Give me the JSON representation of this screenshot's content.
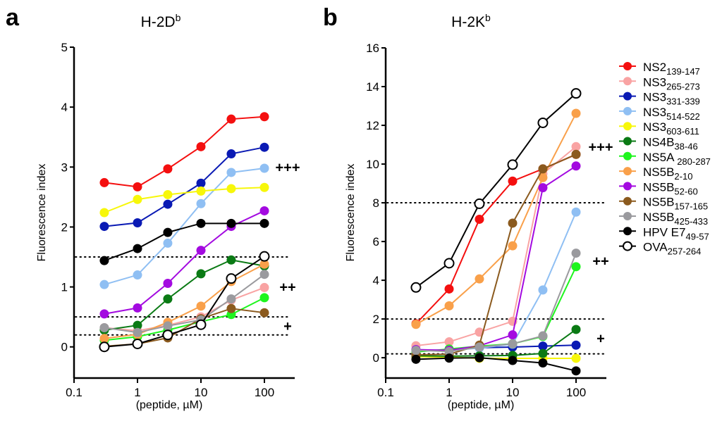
{
  "chart_data": [
    {
      "panel": "a",
      "type": "line",
      "title": "H-2D",
      "title_superscript": "b",
      "xlabel": "(peptide, µM)",
      "ylabel": "Fluorescence index",
      "xscale": "log",
      "xlim": [
        0.1,
        250
      ],
      "ylim": [
        -0.52,
        5
      ],
      "xticks": [
        0.1,
        1,
        10,
        100
      ],
      "xtick_labels": [
        "0.1",
        "1",
        "10",
        "100"
      ],
      "yticks": [
        0,
        1,
        2,
        3,
        4,
        5
      ],
      "ytick_labels": [
        "0",
        "1",
        "2",
        "3",
        "4",
        "5"
      ],
      "reference_lines": [
        1.5,
        0.5,
        0.2
      ],
      "annotations": [
        {
          "text": "+++",
          "y": 3.0
        },
        {
          "text": "++",
          "y": 1.0
        },
        {
          "text": "+",
          "y": 0.35
        }
      ],
      "x": [
        0.3,
        1,
        3,
        10,
        30,
        100
      ],
      "series": [
        {
          "name": "NS2 139-147",
          "values": [
            2.74,
            2.67,
            2.97,
            3.34,
            3.8,
            3.84
          ]
        },
        {
          "name": "NS3 265-273",
          "values": [
            0.32,
            0.27,
            0.36,
            0.5,
            0.78,
            0.99
          ]
        },
        {
          "name": "NS3 331-339",
          "values": [
            2.01,
            2.07,
            2.38,
            2.73,
            3.22,
            3.33
          ]
        },
        {
          "name": "NS3 514-522",
          "values": [
            1.04,
            1.2,
            1.73,
            2.39,
            2.91,
            2.98
          ]
        },
        {
          "name": "NS3 603-611",
          "values": [
            2.24,
            2.46,
            2.54,
            2.6,
            2.64,
            2.66
          ]
        },
        {
          "name": "NS4B 38-46",
          "values": [
            0.28,
            0.36,
            0.8,
            1.22,
            1.45,
            1.35
          ]
        },
        {
          "name": "NS5A 280-287",
          "values": [
            0.11,
            0.17,
            0.28,
            0.42,
            0.54,
            0.82
          ]
        },
        {
          "name": "NS5B 2-10",
          "values": [
            0.14,
            0.21,
            0.41,
            0.68,
            1.09,
            1.38
          ]
        },
        {
          "name": "NS5B 52-60",
          "values": [
            0.55,
            0.65,
            1.06,
            1.61,
            2.01,
            2.27
          ]
        },
        {
          "name": "NS5B 157-165",
          "values": [
            0.01,
            0.05,
            0.15,
            0.47,
            0.64,
            0.57
          ]
        },
        {
          "name": "NS5B 425-433",
          "values": [
            0.32,
            0.24,
            0.35,
            0.45,
            0.8,
            1.21
          ]
        },
        {
          "name": "HPV E7 49-57",
          "values": [
            1.44,
            1.64,
            1.91,
            2.06,
            2.06,
            2.06
          ]
        },
        {
          "name": "OVA 257-264",
          "values": [
            0.0,
            0.05,
            0.2,
            0.37,
            1.14,
            1.51
          ]
        }
      ]
    },
    {
      "panel": "b",
      "type": "line",
      "title": "H-2K",
      "title_superscript": "b",
      "xlabel": "(peptide, µM)",
      "ylabel": "Fluorescence index",
      "xscale": "log",
      "xlim": [
        0.1,
        250
      ],
      "ylim": [
        -1.05,
        16
      ],
      "xticks": [
        0.1,
        1,
        10,
        100
      ],
      "xtick_labels": [
        "0.1",
        "1",
        "10",
        "100"
      ],
      "yticks": [
        0,
        2,
        4,
        6,
        8,
        10,
        12,
        14,
        16
      ],
      "ytick_labels": [
        "0",
        "2",
        "4",
        "6",
        "8",
        "10",
        "12",
        "14",
        "16"
      ],
      "reference_lines": [
        8,
        2,
        0.2
      ],
      "annotations": [
        {
          "text": "+++",
          "y": 10.9
        },
        {
          "text": "++",
          "y": 5.0
        },
        {
          "text": "+",
          "y": 1.0
        }
      ],
      "x": [
        0.3,
        1,
        3,
        10,
        30,
        100
      ],
      "series": [
        {
          "name": "NS2 139-147",
          "values": [
            1.75,
            3.55,
            7.15,
            9.12,
            9.75,
            10.5
          ]
        },
        {
          "name": "NS3 265-273",
          "values": [
            0.62,
            0.82,
            1.32,
            1.88,
            9.5,
            10.9
          ]
        },
        {
          "name": "NS3 331-339",
          "values": [
            0.4,
            0.38,
            0.52,
            0.55,
            0.6,
            0.65
          ]
        },
        {
          "name": "NS3 514-522",
          "values": [
            0.42,
            0.38,
            0.5,
            0.7,
            3.5,
            7.52
          ]
        },
        {
          "name": "NS3 603-611",
          "values": [
            0.05,
            0.03,
            -0.03,
            -0.03,
            -0.03,
            -0.03
          ]
        },
        {
          "name": "NS4B 38-46",
          "values": [
            0.1,
            0.08,
            0.1,
            0.12,
            0.22,
            1.46
          ]
        },
        {
          "name": "NS5A 280-287",
          "values": [
            0.3,
            0.45,
            0.6,
            0.72,
            1.1,
            4.7
          ]
        },
        {
          "name": "NS5B 2-10",
          "values": [
            1.72,
            2.68,
            4.07,
            5.78,
            9.3,
            12.62
          ]
        },
        {
          "name": "NS5B 52-60",
          "values": [
            0.42,
            0.38,
            0.62,
            1.18,
            8.78,
            9.9
          ]
        },
        {
          "name": "NS5B 157-165",
          "values": [
            0.15,
            0.18,
            0.65,
            6.95,
            9.75,
            10.5
          ]
        },
        {
          "name": "NS5B 425-433",
          "values": [
            0.38,
            0.32,
            0.55,
            0.72,
            1.13,
            5.4
          ]
        },
        {
          "name": "HPV E7 49-57",
          "values": [
            -0.08,
            -0.02,
            0.0,
            -0.14,
            -0.27,
            -0.68
          ]
        },
        {
          "name": "OVA 257-264",
          "values": [
            3.63,
            4.88,
            7.95,
            9.97,
            12.13,
            13.65
          ]
        }
      ]
    }
  ],
  "legend": [
    {
      "base": "NS2",
      "sub": "139-147",
      "color": "#f40f0f",
      "hollow": false
    },
    {
      "base": "NS3",
      "sub": "265-273",
      "color": "#f9a3a3",
      "hollow": false
    },
    {
      "base": "NS3",
      "sub": "331-339",
      "color": "#0a1ab4",
      "hollow": false
    },
    {
      "base": "NS3",
      "sub": "514-522",
      "color": "#8fbff3",
      "hollow": false
    },
    {
      "base": "NS3",
      "sub": "603-611",
      "color": "#f7f70a",
      "hollow": false
    },
    {
      "base": "NS4B",
      "sub": "38-46",
      "color": "#0a7a14",
      "hollow": false
    },
    {
      "base": "NS5A ",
      "sub": "280-287",
      "color": "#1ef51e",
      "hollow": false
    },
    {
      "base": "NS5B",
      "sub": "2-10",
      "color": "#f9a04a",
      "hollow": false
    },
    {
      "base": "NS5B",
      "sub": "52-60",
      "color": "#a30ae0",
      "hollow": false
    },
    {
      "base": "NS5B",
      "sub": "157-165",
      "color": "#8b5a1e",
      "hollow": false
    },
    {
      "base": "NS5B",
      "sub": "425-433",
      "color": "#9a9a9e",
      "hollow": false
    },
    {
      "base": "HPV E7",
      "sub": "49-57",
      "color": "#000000",
      "hollow": false
    },
    {
      "base": "OVA",
      "sub": "257-264",
      "color": "#000000",
      "hollow": true
    }
  ]
}
